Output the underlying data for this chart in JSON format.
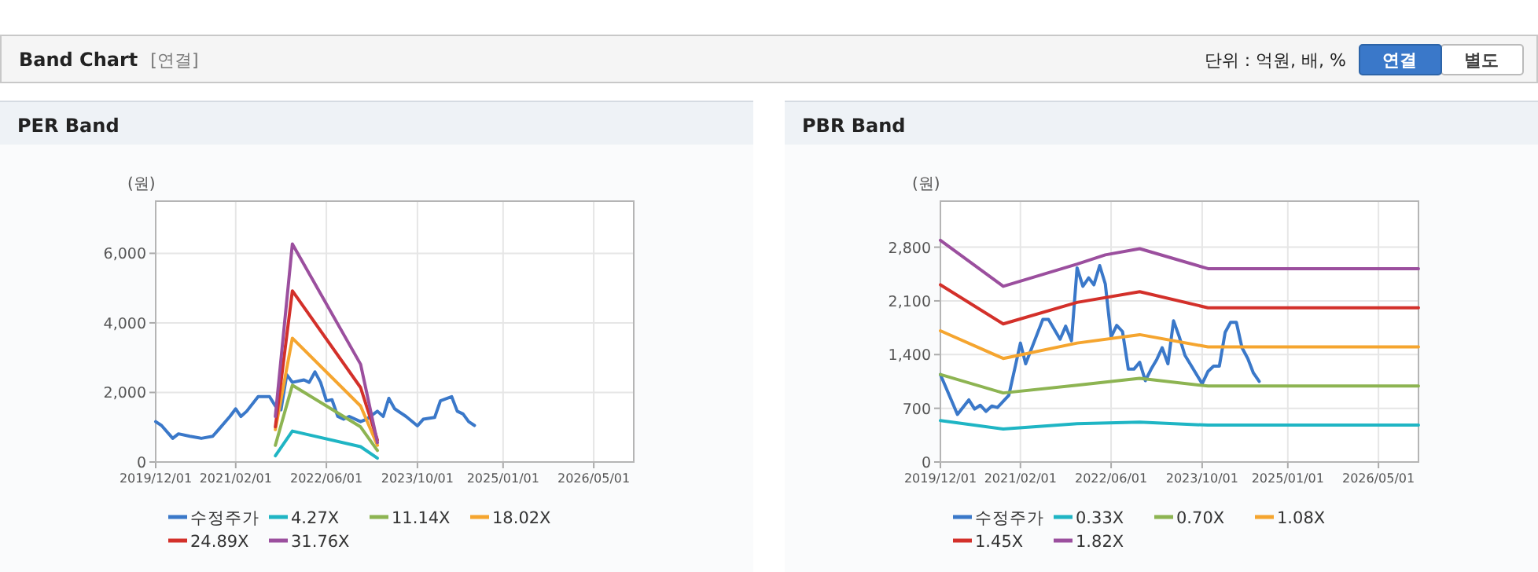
{
  "chart_data": [
    {
      "type": "other",
      "title": "Band Chart",
      "subtitle": "[연결]",
      "annotations": [
        "단위 : 억원, 배, %",
        "연결",
        "별도"
      ]
    },
    {
      "type": "line",
      "title": "PER Band",
      "ylabel": "(원)",
      "grid": true,
      "legend": "bottom",
      "xlim": [
        "2019-12-01",
        "2026-12-01"
      ],
      "ylim": [
        0,
        7500
      ],
      "xticks": [
        {
          "value": "2019-12-01",
          "label": "2019/12/01"
        },
        {
          "value": "2021-02-01",
          "label": "2021/02/01"
        },
        {
          "value": "2022-06-01",
          "label": "2022/06/01"
        },
        {
          "value": "2023-10-01",
          "label": "2023/10/01"
        },
        {
          "value": "2025-01-01",
          "label": "2025/01/01"
        },
        {
          "value": "2026-05-01",
          "label": "2026/05/01"
        }
      ],
      "yticks": [
        {
          "value": 0,
          "label": "0"
        },
        {
          "value": 2000,
          "label": "2,000"
        },
        {
          "value": 4000,
          "label": "4,000"
        },
        {
          "value": 6000,
          "label": "6,000"
        }
      ],
      "series": [
        {
          "name": "수정주가",
          "color": "#3a78c9",
          "x": [
            "2019-12",
            "2020-01",
            "2020-03",
            "2020-04",
            "2020-06",
            "2020-08",
            "2020-10",
            "2020-11",
            "2021-01",
            "2021-02",
            "2021-03",
            "2021-04",
            "2021-06",
            "2021-08",
            "2021-09",
            "2021-10",
            "2021-11",
            "2021-12",
            "2022-02",
            "2022-03",
            "2022-04",
            "2022-05",
            "2022-06",
            "2022-07",
            "2022-08",
            "2022-09",
            "2022-10",
            "2022-12",
            "2023-01",
            "2023-02",
            "2023-03",
            "2023-04",
            "2023-05",
            "2023-06",
            "2023-08",
            "2023-10",
            "2023-11",
            "2024-01",
            "2024-02",
            "2024-04",
            "2024-05",
            "2024-06",
            "2024-07",
            "2024-08"
          ],
          "values": [
            1160,
            1050,
            680,
            810,
            740,
            680,
            740,
            930,
            1310,
            1530,
            1310,
            1460,
            1880,
            1880,
            1610,
            1500,
            2510,
            2290,
            2360,
            2290,
            2590,
            2290,
            1760,
            1790,
            1310,
            1230,
            1310,
            1160,
            1230,
            1350,
            1460,
            1310,
            1830,
            1530,
            1310,
            1040,
            1230,
            1280,
            1760,
            1880,
            1460,
            1380,
            1160,
            1050
          ]
        },
        {
          "name": "4.27X",
          "color": "#1fb5c4",
          "x": [
            "2021-09",
            "2021-12",
            "2022-12",
            "2023-03"
          ],
          "values": [
            180,
            890,
            440,
            110
          ]
        },
        {
          "name": "11.14X",
          "color": "#8db452",
          "x": [
            "2021-09",
            "2021-12",
            "2022-12",
            "2023-03"
          ],
          "values": [
            480,
            2210,
            1010,
            330
          ]
        },
        {
          "name": "18.02X",
          "color": "#f5a52f",
          "x": [
            "2021-09",
            "2021-12",
            "2022-12",
            "2023-03"
          ],
          "values": [
            930,
            3560,
            1610,
            480
          ]
        },
        {
          "name": "24.89X",
          "color": "#d3302a",
          "x": [
            "2021-09",
            "2021-12",
            "2022-12",
            "2023-03"
          ],
          "values": [
            1010,
            4920,
            2140,
            630
          ]
        },
        {
          "name": "31.76X",
          "color": "#9b4f9e",
          "x": [
            "2021-09",
            "2021-12",
            "2022-12",
            "2023-03"
          ],
          "values": [
            1310,
            6270,
            2810,
            560
          ]
        }
      ]
    },
    {
      "type": "line",
      "title": "PBR Band",
      "ylabel": "(원)",
      "grid": true,
      "legend": "bottom",
      "xlim": [
        "2019-12-01",
        "2026-12-01"
      ],
      "ylim": [
        0,
        3400
      ],
      "xticks": [
        {
          "value": "2019-12-01",
          "label": "2019/12/01"
        },
        {
          "value": "2021-02-01",
          "label": "2021/02/01"
        },
        {
          "value": "2022-06-01",
          "label": "2022/06/01"
        },
        {
          "value": "2023-10-01",
          "label": "2023/10/01"
        },
        {
          "value": "2025-01-01",
          "label": "2025/01/01"
        },
        {
          "value": "2026-05-01",
          "label": "2026/05/01"
        }
      ],
      "yticks": [
        {
          "value": 0,
          "label": "0"
        },
        {
          "value": 700,
          "label": "700"
        },
        {
          "value": 1400,
          "label": "1,400"
        },
        {
          "value": 2100,
          "label": "2,100"
        },
        {
          "value": 2800,
          "label": "2,800"
        }
      ],
      "series": [
        {
          "name": "수정주가",
          "color": "#3a78c9",
          "x": [
            "2019-12",
            "2020-03",
            "2020-05",
            "2020-06",
            "2020-07",
            "2020-08",
            "2020-09",
            "2020-10",
            "2020-12",
            "2021-01",
            "2021-02",
            "2021-03",
            "2021-06",
            "2021-07",
            "2021-09",
            "2021-10",
            "2021-11",
            "2021-12",
            "2022-01",
            "2022-02",
            "2022-03",
            "2022-04",
            "2022-05",
            "2022-06",
            "2022-07",
            "2022-08",
            "2022-09",
            "2022-10",
            "2022-11",
            "2022-12",
            "2023-01",
            "2023-02",
            "2023-03",
            "2023-04",
            "2023-05",
            "2023-06",
            "2023-07",
            "2023-10",
            "2023-11",
            "2023-12",
            "2024-01",
            "2024-02",
            "2024-03",
            "2024-04",
            "2024-05",
            "2024-06",
            "2024-07",
            "2024-08"
          ],
          "values": [
            1140,
            620,
            810,
            690,
            740,
            660,
            730,
            710,
            870,
            1210,
            1550,
            1280,
            1860,
            1860,
            1600,
            1770,
            1580,
            2530,
            2290,
            2400,
            2310,
            2560,
            2320,
            1630,
            1780,
            1700,
            1210,
            1210,
            1300,
            1060,
            1210,
            1340,
            1490,
            1280,
            1840,
            1630,
            1390,
            1020,
            1180,
            1250,
            1250,
            1690,
            1820,
            1820,
            1490,
            1350,
            1160,
            1050
          ]
        },
        {
          "name": "0.33X",
          "color": "#1fb5c4",
          "x": [
            "2019-12",
            "2020-11",
            "2021-12",
            "2022-11",
            "2023-11",
            "2026-12"
          ],
          "values": [
            540,
            430,
            500,
            520,
            480,
            480
          ]
        },
        {
          "name": "0.70X",
          "color": "#8db452",
          "x": [
            "2019-12",
            "2020-11",
            "2021-12",
            "2022-11",
            "2023-11",
            "2026-12"
          ],
          "values": [
            1140,
            900,
            1000,
            1090,
            990,
            990
          ]
        },
        {
          "name": "1.08X",
          "color": "#f5a52f",
          "x": [
            "2019-12",
            "2020-11",
            "2021-12",
            "2022-11",
            "2023-11",
            "2026-12"
          ],
          "values": [
            1710,
            1350,
            1550,
            1660,
            1500,
            1500
          ]
        },
        {
          "name": "1.45X",
          "color": "#d3302a",
          "x": [
            "2019-12",
            "2020-11",
            "2021-12",
            "2022-11",
            "2023-11",
            "2026-12"
          ],
          "values": [
            2310,
            1800,
            2080,
            2220,
            2010,
            2010
          ]
        },
        {
          "name": "1.82X",
          "color": "#9b4f9e",
          "x": [
            "2019-12",
            "2020-11",
            "2021-12",
            "2022-05",
            "2022-11",
            "2023-11",
            "2026-12"
          ],
          "values": [
            2890,
            2290,
            2580,
            2700,
            2780,
            2520,
            2520
          ]
        }
      ]
    }
  ]
}
